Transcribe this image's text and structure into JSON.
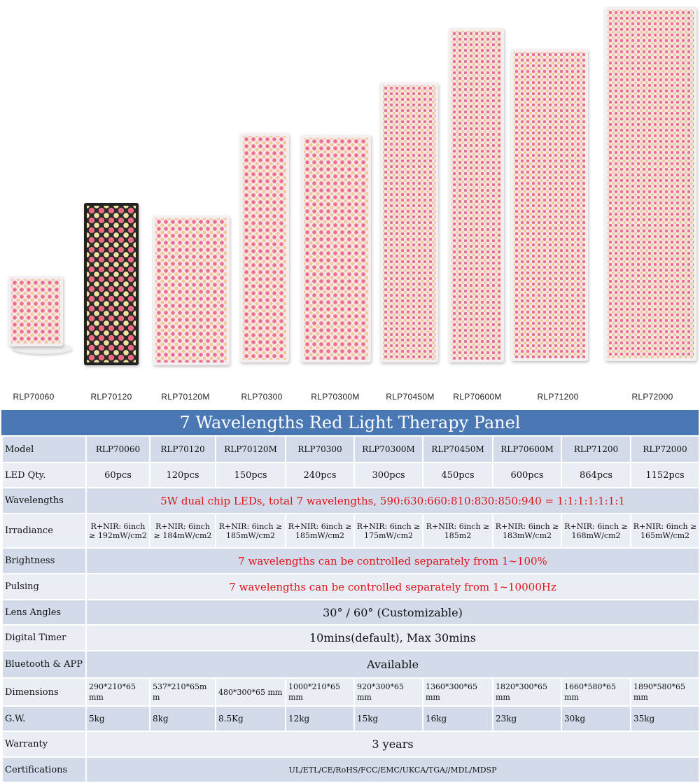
{
  "models": [
    "RLP70060",
    "RLP70120",
    "RLP70120M",
    "RLP70300",
    "RLP70300M",
    "RLP70450M",
    "RLP70600M",
    "RLP71200",
    "RLP72000"
  ],
  "title": "7 Wavelengths Red Light Therapy Panel",
  "rows": {
    "model_label": "Model",
    "led_label": "LED Qty.",
    "led": [
      "60pcs",
      "120pcs",
      "150pcs",
      "240pcs",
      "300pcs",
      "450pcs",
      "600pcs",
      "864pcs",
      "1152pcs"
    ],
    "wavelengths_label": "Wavelengths",
    "wavelengths": "5W dual chip LEDs, total 7 wavelengths, 590:630:660:810:830:850:940 = 1:1:1:1:1:1:1",
    "irradiance_label": "Irradiance",
    "irradiance": [
      "R+NIR: 6inch ≥ 192mW/cm2",
      "R+NIR: 6inch ≥ 184mW/cm2",
      "R+NIR: 6inch ≥ 185mW/cm2",
      "R+NIR: 6inch ≥ 185mW/cm2",
      "R+NIR: 6inch ≥ 175mW/cm2",
      "R+NIR: 6inch ≥ 185m2",
      "R+NIR: 6inch ≥ 183mW/cm2",
      "R+NIR: 6inch ≥ 168mW/cm2",
      "R+NIR: 6inch ≥ 165mW/cm2"
    ],
    "brightness_label": "Brightness",
    "brightness": "7 wavelengths can be controlled separately from 1~100%",
    "pulsing_label": "Pulsing",
    "pulsing": "7 wavelengths can be controlled separately from 1~10000Hz",
    "lens_label": "Lens Angles",
    "lens": "30° / 60° (Customizable)",
    "timer_label": "Digital Timer",
    "timer": "10mins(default), Max 30mins",
    "bluetooth_label": "Bluetooth & APP",
    "bluetooth": "Available",
    "dimensions_label": "Dimensions",
    "dimensions": [
      "290*210*65 mm",
      "537*210*65m m",
      "480*300*65 mm",
      "1000*210*65 mm",
      "920*300*65 mm",
      "1360*300*65 mm",
      "1820*300*65 mm",
      "1660*580*65 mm",
      "1890*580*65 mm"
    ],
    "gw_label": "G.W.",
    "gw": [
      "5kg",
      "8kg",
      "8.5Kg",
      "12kg",
      "15kg",
      "16kg",
      "23kg",
      "30kg",
      "35kg"
    ],
    "warranty_label": "Warranty",
    "warranty": "3 years",
    "cert_label": "Certifications",
    "cert": "UL/ETL/CE/RoHS/FCC/EMC/UKCA/TGA//MDL/MDSP"
  },
  "colors": {
    "header": "#4a78b4",
    "highlight_text": "#e0141a"
  }
}
